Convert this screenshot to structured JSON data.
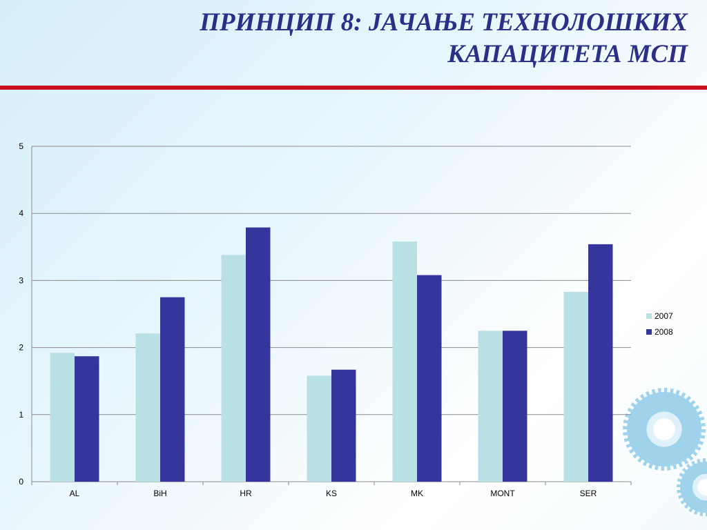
{
  "slide": {
    "title_line1": "ПРИНЦИП 8: ЈАЧАЊЕ ТЕХНОЛОШКИХ",
    "title_line2": "КАПАЦИТЕТА МСП"
  },
  "colors": {
    "title": "#2b2f88",
    "rule": "#c8101e",
    "series_2007": "#b9e0e4",
    "series_2008": "#35359b",
    "gear": "#8fcbe8"
  },
  "decor": {
    "icon": "gear-icon"
  },
  "chart_data": {
    "type": "bar",
    "title": "",
    "xlabel": "",
    "ylabel": "",
    "categories": [
      "AL",
      "BiH",
      "HR",
      "KS",
      "MK",
      "MONT",
      "SER"
    ],
    "series": [
      {
        "name": "2007",
        "values": [
          1.92,
          2.21,
          3.38,
          1.58,
          3.58,
          2.25,
          2.83
        ]
      },
      {
        "name": "2008",
        "values": [
          1.87,
          2.75,
          3.79,
          1.67,
          3.08,
          2.25,
          3.54
        ]
      }
    ],
    "ylim": [
      0,
      5
    ],
    "yticks": [
      "0",
      "1",
      "2",
      "3",
      "4",
      "5"
    ],
    "grid": true,
    "legend_position": "right"
  }
}
